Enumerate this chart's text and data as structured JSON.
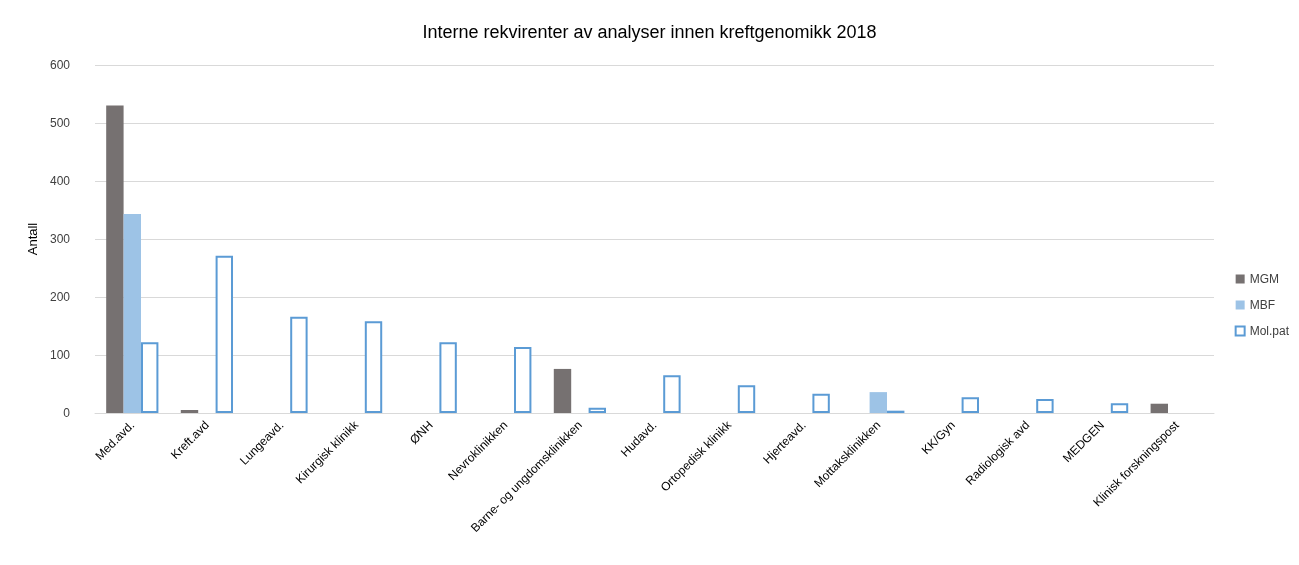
{
  "chart_data": {
    "type": "bar",
    "title": "Interne rekvirenter av analyser innen kreftgenomikk 2018",
    "ylabel": "Antall",
    "categories": [
      "Med.avd.",
      "Kreft.avd",
      "Lungeavd.",
      "Kirurgisk klinikk",
      "ØNH",
      "Nevroklinikken",
      "Barne- og ungdomsklinikken",
      "Hudavd.",
      "Ortopedisk klinikk",
      "Hjerteavd.",
      "Mottaksklinikken",
      "KK/Gyn",
      "Radiologisk avd",
      "MEDGEN",
      "Klinisk forskningspost"
    ],
    "series": [
      {
        "name": "MGM",
        "color": "#767171",
        "values": [
          530,
          5,
          null,
          null,
          null,
          null,
          76,
          null,
          null,
          null,
          null,
          null,
          null,
          null,
          16
        ]
      },
      {
        "name": "MBF",
        "color": "#9dc3e6",
        "values": [
          343,
          null,
          null,
          null,
          null,
          null,
          null,
          null,
          null,
          null,
          36,
          null,
          null,
          null,
          null
        ]
      },
      {
        "name": "Mol.pat",
        "color": "#5b9bd5",
        "values": [
          122,
          271,
          166,
          158,
          122,
          114,
          9,
          65,
          48,
          33,
          4,
          27,
          24,
          17,
          null
        ]
      }
    ],
    "ylim": [
      0,
      600
    ],
    "yticks": [
      0,
      100,
      200,
      300,
      400,
      500,
      600
    ],
    "grid": "y",
    "legend": "right"
  }
}
